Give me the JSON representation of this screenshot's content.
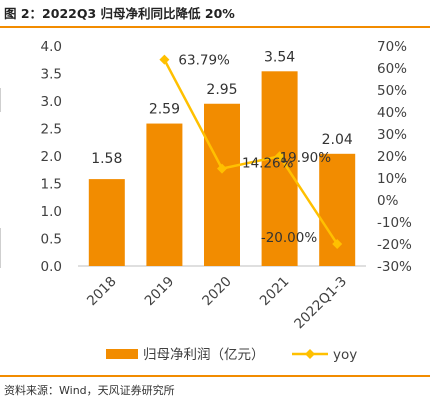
{
  "figure": {
    "title": "图 2：2022Q3 归母净利同比降低 20%",
    "source": "资料来源：Wind，天风证券研究所"
  },
  "colors": {
    "bar": "#F28C00",
    "line": "#FFC000",
    "rule": "#F28C00",
    "label": "#404040"
  },
  "chart_data": {
    "type": "bar",
    "title": "",
    "categories": [
      "2018",
      "2019",
      "2020",
      "2021",
      "2022Q1-3"
    ],
    "series": [
      {
        "name": "归母净利润（亿元）",
        "type": "bar",
        "axis": "left",
        "values": [
          1.58,
          2.59,
          2.95,
          3.54,
          2.04
        ],
        "labels": [
          "1.58",
          "2.59",
          "2.95",
          "3.54",
          "2.04"
        ]
      },
      {
        "name": "yoy",
        "type": "line",
        "axis": "right",
        "values": [
          null,
          63.79,
          14.26,
          19.9,
          -20.0
        ],
        "labels": [
          "",
          "63.79%",
          "14.26%",
          "19.90%",
          "-20.00%"
        ]
      }
    ],
    "left_axis": {
      "ylim": [
        0,
        4.0
      ],
      "ticks": [
        "0.0",
        "0.5",
        "1.0",
        "1.5",
        "2.0",
        "2.5",
        "3.0",
        "3.5",
        "4.0"
      ]
    },
    "right_axis": {
      "ylim": [
        -30,
        70
      ],
      "ticks": [
        "-30%",
        "-20%",
        "-10%",
        "0%",
        "10%",
        "20%",
        "30%",
        "40%",
        "50%",
        "60%",
        "70%"
      ]
    },
    "legend_position": "bottom",
    "grid": false
  }
}
